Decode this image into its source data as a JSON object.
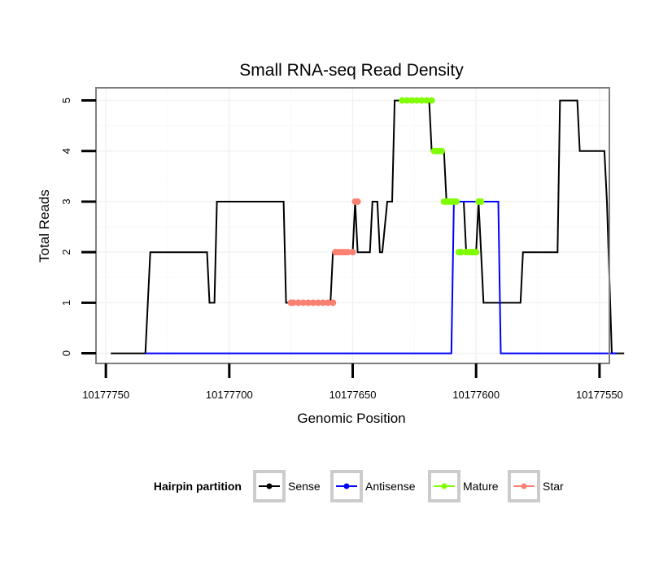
{
  "chart_data": {
    "type": "line",
    "title": "Small RNA-seq Read Density",
    "xlabel": "Genomic Position",
    "ylabel": "Total Reads",
    "xlim": [
      10177754,
      10177546
    ],
    "ylim": [
      -0.2,
      5.25
    ],
    "x_reversed": true,
    "x_ticks": [
      10177750,
      10177700,
      10177650,
      10177600,
      10177550
    ],
    "x_tick_labels": [
      "10177750",
      "10177700",
      "10177650",
      "10177600",
      "10177550"
    ],
    "y_ticks": [
      0,
      1,
      2,
      3,
      4,
      5
    ],
    "y_tick_labels": [
      "0",
      "1",
      "2",
      "3",
      "4",
      "5"
    ],
    "grid": true,
    "legend_position": "bottom",
    "legend": {
      "title": "Hairpin partition",
      "entries": [
        "Sense",
        "Antisense",
        "Mature",
        "Star"
      ]
    },
    "series": [
      {
        "name": "Sense",
        "color": "#000000",
        "style": "line",
        "x": [
          10177748,
          10177734,
          10177732,
          10177709,
          10177708,
          10177706,
          10177705,
          10177703,
          10177678,
          10177677,
          10177659,
          10177658,
          10177650,
          10177649,
          10177648,
          10177643,
          10177642,
          10177640,
          10177639,
          10177638,
          10177636,
          10177634,
          10177633,
          10177630,
          10177629,
          10177619,
          10177618,
          10177613,
          10177612,
          10177605,
          10177604,
          10177603,
          10177601,
          10177600,
          10177599,
          10177598,
          10177597,
          10177596,
          10177595,
          10177594,
          10177593,
          10177582,
          10177581,
          10177567,
          10177566,
          10177559,
          10177558,
          10177548,
          10177547,
          10177545,
          10177540
        ],
        "values": [
          0,
          0,
          2,
          2,
          1,
          1,
          3,
          3,
          3,
          1,
          1,
          2,
          2,
          3,
          2,
          2,
          3,
          3,
          2,
          2,
          3,
          3,
          5,
          5,
          5,
          5,
          4,
          4,
          3,
          3,
          2,
          2,
          2,
          2,
          3,
          2,
          1,
          1,
          1,
          1,
          1,
          1,
          2,
          2,
          5,
          5,
          4,
          4,
          3,
          0,
          0
        ]
      },
      {
        "name": "Antisense",
        "color": "#0000ff",
        "style": "line",
        "x": [
          10177734,
          10177610,
          10177609,
          10177591,
          10177590,
          10177543
        ],
        "values": [
          0,
          0,
          3,
          3,
          0,
          0
        ]
      },
      {
        "name": "Mature",
        "color": "#7fff00",
        "style": "points",
        "x": [
          10177630,
          10177628,
          10177626,
          10177624,
          10177622,
          10177620,
          10177618,
          10177617,
          10177616,
          10177615,
          10177614,
          10177613,
          10177612,
          10177611,
          10177610,
          10177609,
          10177608,
          10177607,
          10177606,
          10177604,
          10177603,
          10177602,
          10177601,
          10177600,
          10177599,
          10177598
        ],
        "values": [
          5,
          5,
          5,
          5,
          5,
          5,
          5,
          4,
          4,
          4,
          4,
          3,
          3,
          3,
          3,
          3,
          3,
          2,
          2,
          2,
          2,
          2,
          2,
          2,
          3,
          3
        ]
      },
      {
        "name": "Star",
        "color": "#fa8072",
        "style": "points",
        "x": [
          10177675,
          10177674,
          10177672,
          10177670,
          10177668,
          10177666,
          10177664,
          10177662,
          10177660,
          10177658,
          10177657,
          10177656,
          10177655,
          10177654,
          10177653,
          10177652,
          10177650,
          10177649,
          10177648
        ],
        "values": [
          1,
          1,
          1,
          1,
          1,
          1,
          1,
          1,
          1,
          1,
          2,
          2,
          2,
          2,
          2,
          2,
          2,
          3,
          3
        ]
      }
    ]
  }
}
